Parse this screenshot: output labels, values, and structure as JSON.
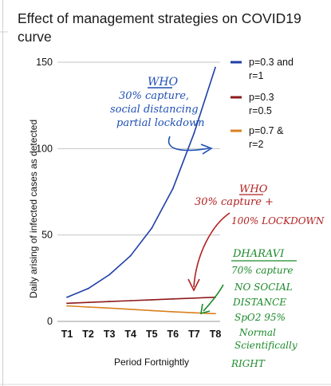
{
  "chart_data": {
    "type": "line",
    "title_lines": [
      "Effect of management strategies on COVID19",
      "curve"
    ],
    "xlabel": "Period Fortnightly",
    "ylabel": "Daily arising of infected cases as detected",
    "categories": [
      "T1",
      "T2",
      "T3",
      "T4",
      "T5",
      "T6",
      "T7",
      "T8"
    ],
    "ylim": [
      0,
      150
    ],
    "yticks": [
      0,
      50,
      100,
      150
    ],
    "grid": true,
    "legend_position": "right",
    "series": [
      {
        "name_lines": [
          "p=0.3 and",
          "r=1"
        ],
        "color": "#1f3fa8",
        "values": [
          14,
          19,
          27,
          38,
          54,
          77,
          109,
          147
        ]
      },
      {
        "name_lines": [
          "p=0.3",
          "r=0.5"
        ],
        "color": "#8e1b1b",
        "values": [
          10.5,
          11,
          11.5,
          12,
          12.5,
          13,
          13.5,
          14
        ]
      },
      {
        "name_lines": [
          "p=0.7 &",
          "r=2"
        ],
        "color": "#d9801e",
        "values": [
          9,
          8.3,
          7.7,
          7,
          6.3,
          5.6,
          5,
          4.5
        ]
      }
    ]
  },
  "annotations": {
    "blue": [
      "WHO",
      "30% capture,",
      "social distancing",
      "partial lockdown"
    ],
    "red": [
      "WHO",
      "30% capture +",
      "100% LOCKDOWN"
    ],
    "green": [
      "DHARAVI",
      "70% capture",
      "NO SOCIAL",
      "DISTANCE",
      "SpO2 95%",
      "Normal",
      "Scientifically",
      "RIGHT"
    ]
  }
}
